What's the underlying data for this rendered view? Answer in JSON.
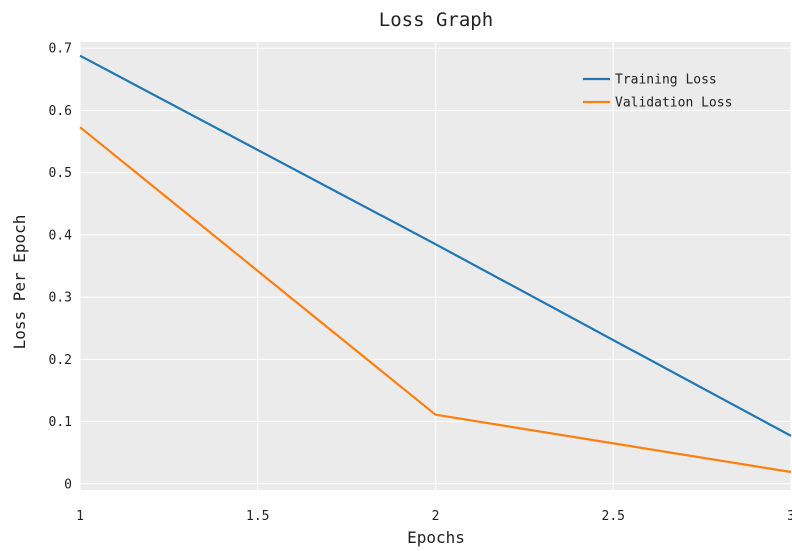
{
  "chart_data": {
    "type": "line",
    "title": "Loss Graph",
    "xlabel": "Epochs",
    "ylabel": "Loss Per Epoch",
    "xlim": [
      1,
      3
    ],
    "ylim": [
      -0.01,
      0.71
    ],
    "xticks": [
      1,
      1.5,
      2,
      2.5,
      3
    ],
    "xtick_labels": [
      "1",
      "1.5",
      "2",
      "2.5",
      "3"
    ],
    "yticks": [
      0,
      0.1,
      0.2,
      0.3,
      0.4,
      0.5,
      0.6,
      0.7
    ],
    "ytick_labels": [
      "0",
      "0.1",
      "0.2",
      "0.3",
      "0.4",
      "0.5",
      "0.6",
      "0.7"
    ],
    "grid": true,
    "legend_position": "top-right",
    "plot_background": "#ebebeb",
    "x": [
      1,
      2,
      3
    ],
    "series": [
      {
        "name": "Training Loss",
        "color": "#1f77b4",
        "values": [
          0.688,
          0.385,
          0.077
        ]
      },
      {
        "name": "Validation Loss",
        "color": "#ff7f0e",
        "values": [
          0.573,
          0.111,
          0.019
        ]
      }
    ]
  }
}
